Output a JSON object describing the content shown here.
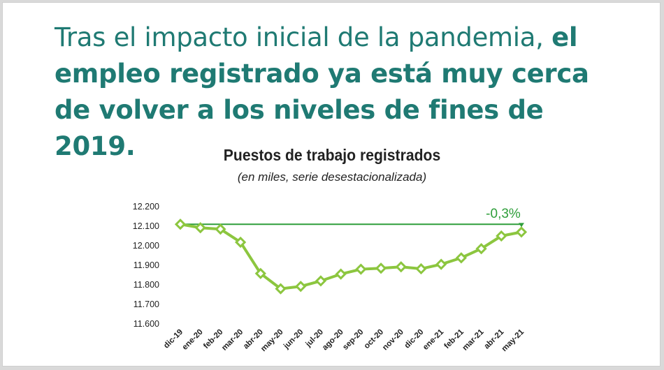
{
  "headline": {
    "part1": "Tras el impacto inicial de la pandemia, ",
    "part2": "el empleo registrado ya está muy cerca de volver a los niveles de fines de 2019."
  },
  "colors": {
    "headline": "#1f7a73",
    "line": "#8cc63f",
    "marker_fill": "#ffffff",
    "reference": "#2e9e3a"
  },
  "chart_data": {
    "type": "line",
    "title": "Puestos de trabajo registrados",
    "subtitle": "(en miles, serie desestacionalizada)",
    "categories": [
      "dic-19",
      "ene-20",
      "feb-20",
      "mar-20",
      "abr-20",
      "may-20",
      "jun-20",
      "jul-20",
      "ago-20",
      "sep-20",
      "oct-20",
      "nov-20",
      "dic-20",
      "ene-21",
      "feb-21",
      "mar-21",
      "abr-21",
      "may-21"
    ],
    "values": [
      12110,
      12092,
      12085,
      12018,
      11858,
      11780,
      11792,
      11820,
      11855,
      11880,
      11885,
      11892,
      11882,
      11905,
      11938,
      11985,
      12050,
      12070
    ],
    "y_ticks": [
      "12.200",
      "12.100",
      "12.000",
      "11.900",
      "11.800",
      "11.700",
      "11.600"
    ],
    "ylim": [
      11600,
      12200
    ],
    "reference_line": {
      "value": 12110,
      "label": "-0,3%"
    },
    "grid": false,
    "legend": "none"
  }
}
